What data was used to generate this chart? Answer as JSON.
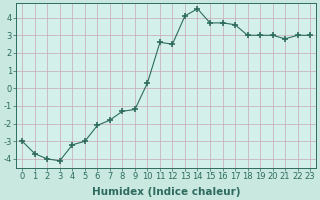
{
  "x": [
    0,
    1,
    2,
    3,
    4,
    5,
    6,
    7,
    8,
    9,
    10,
    11,
    12,
    13,
    14,
    15,
    16,
    17,
    18,
    19,
    20,
    21,
    22,
    23
  ],
  "y": [
    -3.0,
    -3.7,
    -4.0,
    -4.1,
    -3.2,
    -3.0,
    -2.1,
    -1.8,
    -1.3,
    -1.2,
    0.3,
    2.6,
    2.5,
    4.1,
    4.5,
    3.7,
    3.7,
    3.6,
    3.0,
    3.0,
    3.0,
    2.8,
    3.0,
    3.0
  ],
  "xlabel": "Humidex (Indice chaleur)",
  "ylabel": "",
  "xlim": [
    -0.5,
    23.5
  ],
  "ylim": [
    -4.5,
    4.8
  ],
  "yticks": [
    -4,
    -3,
    -2,
    -1,
    0,
    1,
    2,
    3,
    4
  ],
  "xticks": [
    0,
    1,
    2,
    3,
    4,
    5,
    6,
    7,
    8,
    9,
    10,
    11,
    12,
    13,
    14,
    15,
    16,
    17,
    18,
    19,
    20,
    21,
    22,
    23
  ],
  "line_color": "#2e6b5e",
  "marker": "+",
  "marker_size": 4,
  "bg_color": "#d4f0ea",
  "grid_color": "#c8a8b0",
  "title_fontsize": 7,
  "label_fontsize": 7.5,
  "tick_fontsize": 6.0,
  "outer_bg": "#c8e8e0"
}
